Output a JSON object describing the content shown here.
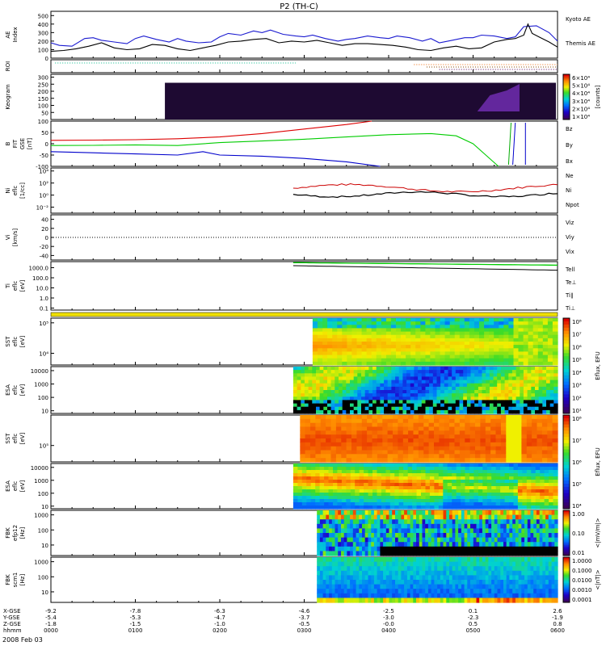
{
  "chart_data": {
    "type": "line",
    "title": "P2 (TH-C)",
    "date_label": "2008 Feb 03",
    "time_axis": {
      "row_labels": [
        "X-GSE",
        "Y-GSE",
        "Z-GSE",
        "hhmm"
      ],
      "ticks": [
        {
          "x": "-9.2",
          "y": "-5.4",
          "z": "-1.8",
          "t": "0000"
        },
        {
          "x": "-7.8",
          "y": "-5.3",
          "z": "-1.5",
          "t": "0100"
        },
        {
          "x": "-6.3",
          "y": "-4.7",
          "z": "-1.0",
          "t": "0200"
        },
        {
          "x": "-4.6",
          "y": "-3.7",
          "z": "-0.5",
          "t": "0300"
        },
        {
          "x": "-2.5",
          "y": "-3.0",
          "z": "-0.0",
          "t": "0400"
        },
        {
          "x": "0.1",
          "y": "-2.3",
          "z": "0.5",
          "t": "0500"
        },
        {
          "x": "2.6",
          "y": "-1.9",
          "z": "0.8",
          "t": "0600"
        }
      ]
    },
    "panels": [
      {
        "id": "ae",
        "ylabel": "AE Index",
        "ticks": [
          "500",
          "400",
          "300",
          "200",
          "100",
          "0"
        ],
        "legend": [
          {
            "name": "Kyoto AE",
            "color": "#0000cc"
          },
          {
            "name": "Themis AE",
            "color": "#000000"
          }
        ],
        "series": [
          {
            "name": "Kyoto AE",
            "color": "#1a1ad0",
            "x": [
              0,
              0.1,
              0.25,
              0.4,
              0.5,
              0.6,
              0.75,
              0.9,
              1.0,
              1.1,
              1.25,
              1.4,
              1.5,
              1.6,
              1.75,
              1.9,
              2.0,
              2.1,
              2.25,
              2.4,
              2.5,
              2.6,
              2.75,
              2.9,
              3.0,
              3.1,
              3.25,
              3.4,
              3.5,
              3.6,
              3.75,
              3.9,
              4.0,
              4.1,
              4.25,
              4.4,
              4.5,
              4.6,
              4.75,
              4.9,
              5.0,
              5.1,
              5.25,
              5.4,
              5.5,
              5.6,
              5.75,
              5.9,
              6.0
            ],
            "y": [
              180,
              150,
              140,
              230,
              240,
              210,
              190,
              170,
              230,
              260,
              220,
              190,
              230,
              200,
              180,
              190,
              250,
              290,
              270,
              320,
              300,
              330,
              280,
              260,
              250,
              270,
              230,
              200,
              220,
              230,
              260,
              240,
              230,
              260,
              240,
              200,
              230,
              180,
              210,
              240,
              240,
              270,
              260,
              230,
              250,
              370,
              380,
              300,
              200
            ]
          },
          {
            "name": "Themis AE",
            "color": "#000000",
            "x": [
              0,
              0.15,
              0.3,
              0.45,
              0.6,
              0.75,
              0.9,
              1.05,
              1.2,
              1.35,
              1.5,
              1.65,
              1.8,
              1.95,
              2.1,
              2.25,
              2.4,
              2.55,
              2.7,
              2.85,
              3.0,
              3.15,
              3.3,
              3.45,
              3.6,
              3.75,
              3.9,
              4.05,
              4.2,
              4.35,
              4.5,
              4.65,
              4.8,
              4.95,
              5.1,
              5.25,
              5.4,
              5.5,
              5.6,
              5.65,
              5.7,
              5.8,
              5.9,
              6.0
            ],
            "y": [
              80,
              90,
              110,
              140,
              180,
              120,
              100,
              110,
              160,
              150,
              110,
              90,
              120,
              150,
              190,
              200,
              220,
              230,
              180,
              200,
              190,
              210,
              180,
              150,
              170,
              170,
              160,
              150,
              130,
              100,
              90,
              120,
              140,
              110,
              120,
              190,
              220,
              230,
              270,
              400,
              290,
              240,
              190,
              130
            ]
          }
        ]
      },
      {
        "id": "roi",
        "ylabel": "ROI"
      },
      {
        "id": "keogram",
        "ylabel": "Keogram",
        "ticks": [
          "300",
          "250",
          "200",
          "150",
          "100",
          "50"
        ],
        "colorbar_label": "[counts]",
        "colorbar_ticks": [
          "6×10⁴",
          "5×10⁴",
          "4×10⁴",
          "3×10⁴",
          "2×10⁴",
          "1×10⁴"
        ]
      },
      {
        "id": "bfield",
        "ylabel": "B FIT GSE [nT]",
        "ticks": [
          "100",
          "50",
          "0",
          "-50",
          "-100"
        ],
        "legend": [
          {
            "name": "Bz",
            "color": "#cc0000"
          },
          {
            "name": "By",
            "color": "#00aa00"
          },
          {
            "name": "Bx",
            "color": "#0000cc"
          }
        ],
        "series": [
          {
            "name": "Bz",
            "color": "#dd0000",
            "x": [
              0,
              0.5,
              1.0,
              1.5,
              2.0,
              2.5,
              3.0,
              3.5,
              3.8
            ],
            "y": [
              15,
              16,
              18,
              22,
              30,
              45,
              65,
              85,
              100
            ]
          },
          {
            "name": "By",
            "color": "#00cc00",
            "x": [
              0,
              0.5,
              1.0,
              1.5,
              2.0,
              2.5,
              3.0,
              3.5,
              4.0,
              4.5,
              4.8,
              5.0,
              5.15,
              5.3
            ],
            "y": [
              -8,
              -7,
              -5,
              -8,
              5,
              12,
              20,
              30,
              40,
              45,
              35,
              0,
              -50,
              -100
            ]
          },
          {
            "name": "Bx",
            "color": "#0000cc",
            "x": [
              0,
              0.5,
              1.0,
              1.5,
              1.8,
              2.0,
              2.5,
              3.0,
              3.5,
              3.9
            ],
            "y": [
              -35,
              -40,
              -45,
              -50,
              -35,
              -50,
              -55,
              -65,
              -80,
              -100
            ]
          }
        ]
      },
      {
        "id": "ni",
        "ylabel": "Ni eflc [1/cc]",
        "ticks": [
          "10⁴",
          "10²",
          "10⁰",
          "10⁻²"
        ],
        "legend": [
          {
            "name": "Ne",
            "color": "#cc0000"
          },
          {
            "name": "Ni",
            "color": "#000000"
          },
          {
            "name": "Npot",
            "color": "#0000cc"
          }
        ]
      },
      {
        "id": "vi",
        "ylabel": "Vi [km/s]",
        "ticks": [
          "40",
          "20",
          "0",
          "-20",
          "-40"
        ],
        "legend": [
          {
            "name": "Viz",
            "color": "#cc0000"
          },
          {
            "name": "Viy",
            "color": "#00aa00"
          },
          {
            "name": "Vix",
            "color": "#0000cc"
          }
        ]
      },
      {
        "id": "ti",
        "ylabel": "Ti eflc [eV]",
        "ticks": [
          "1000.0",
          "100.0",
          "10.0",
          "1.0",
          "0.1"
        ],
        "legend": [
          {
            "name": "Tell",
            "color": "#000000"
          },
          {
            "name": "Te⊥",
            "color": "#cc0000"
          },
          {
            "name": "Ti∥",
            "color": "#00aa00"
          },
          {
            "name": "Ti⊥",
            "color": "#0000cc"
          }
        ]
      },
      {
        "id": "sst_e",
        "ylabel": "SST eflc [eV]",
        "ticks": [
          "10⁵",
          "10⁴"
        ],
        "colorbar_label": "Eflux, EFU",
        "colorbar_ticks": [
          "10⁸",
          "10⁷",
          "10⁶",
          "10⁵",
          "10⁴",
          "10³",
          "10²",
          "10¹"
        ]
      },
      {
        "id": "esa_e",
        "ylabel": "ESA eflc [eV]",
        "ticks": [
          "10000",
          "1000",
          "100",
          "10"
        ],
        "colorbar_label": "Eflux, EFU",
        "colorbar_ticks": [
          "10⁸",
          "10⁷",
          "10⁶",
          "10⁵",
          "10⁴",
          "10³"
        ]
      },
      {
        "id": "sst_i",
        "ylabel": "SST eflc [eV]",
        "ticks": [
          "10⁵"
        ],
        "colorbar_label": "Eflux, EFU",
        "colorbar_ticks": [
          "10⁸",
          "10⁷",
          "10⁶",
          "10⁵",
          "10⁴"
        ]
      },
      {
        "id": "esa_i",
        "ylabel": "ESA eflc [eV]",
        "ticks": [
          "10000",
          "1000",
          "100",
          "10"
        ],
        "colorbar_label": "Eflux, EFU",
        "colorbar_ticks": [
          "10⁸",
          "10⁷",
          "10⁶",
          "10⁵"
        ]
      },
      {
        "id": "fbk_b",
        "ylabel": "FBK efp12 [Hz]",
        "ticks": [
          "1000",
          "100",
          "10"
        ],
        "colorbar_label": "<|mV/m|>",
        "colorbar_ticks": [
          "1.00",
          "0.10",
          "0.01"
        ]
      },
      {
        "id": "fbk_e",
        "ylabel": "FBK scm1 [Hz]",
        "ticks": [
          "1000",
          "100",
          "10"
        ],
        "colorbar_label": "<|nT|>",
        "colorbar_ticks": [
          "1.0000",
          "0.1000",
          "0.0100",
          "0.0010",
          "0.0001"
        ]
      }
    ]
  }
}
